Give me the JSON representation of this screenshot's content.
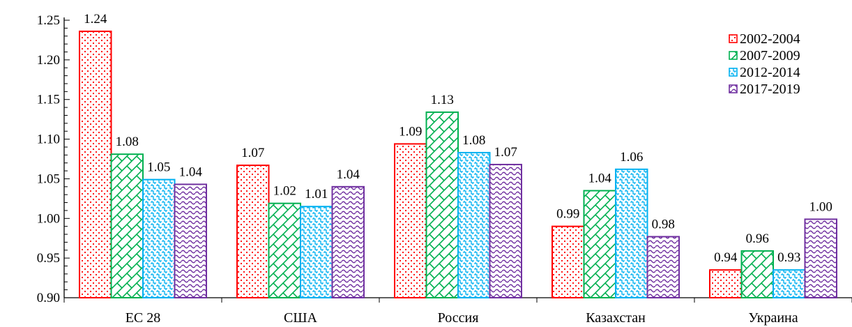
{
  "chart_data": {
    "type": "bar",
    "categories": [
      "ЕС 28",
      "США",
      "Россия",
      "Казахстан",
      "Украина"
    ],
    "series": [
      {
        "name": "2002-2004",
        "color": "#ff0000",
        "pattern": "dots",
        "values": [
          1.236,
          1.067,
          1.094,
          0.99,
          0.935
        ],
        "labels": [
          "1.24",
          "1.07",
          "1.09",
          "0.99",
          "0.94"
        ]
      },
      {
        "name": "2007-2009",
        "color": "#00b050",
        "pattern": "zigzag",
        "values": [
          1.081,
          1.019,
          1.134,
          1.035,
          0.959
        ],
        "labels": [
          "1.08",
          "1.02",
          "1.13",
          "1.04",
          "0.96"
        ]
      },
      {
        "name": "2012-2014",
        "color": "#00b0f0",
        "pattern": "weave",
        "values": [
          1.049,
          1.015,
          1.083,
          1.062,
          0.935
        ],
        "labels": [
          "1.05",
          "1.01",
          "1.08",
          "1.06",
          "0.93"
        ]
      },
      {
        "name": "2017-2019",
        "color": "#7030a0",
        "pattern": "waves",
        "values": [
          1.043,
          1.04,
          1.068,
          0.977,
          0.999
        ],
        "labels": [
          "1.04",
          "1.04",
          "1.07",
          "0.98",
          "1.00"
        ]
      }
    ],
    "y_ticks": [
      "0.90",
      "0.95",
      "1.00",
      "1.05",
      "1.10",
      "1.15",
      "1.20",
      "1.25"
    ],
    "ylim": [
      0.9,
      1.25
    ],
    "legend_position": "top-right",
    "grid": false
  }
}
